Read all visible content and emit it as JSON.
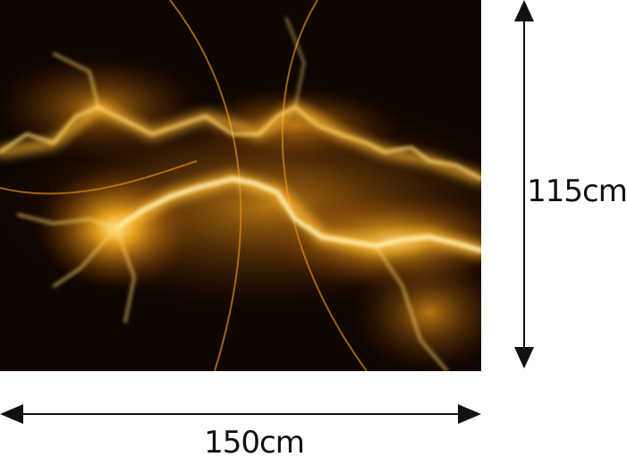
{
  "dimensions": {
    "height": "115cm",
    "width": "150cm"
  }
}
